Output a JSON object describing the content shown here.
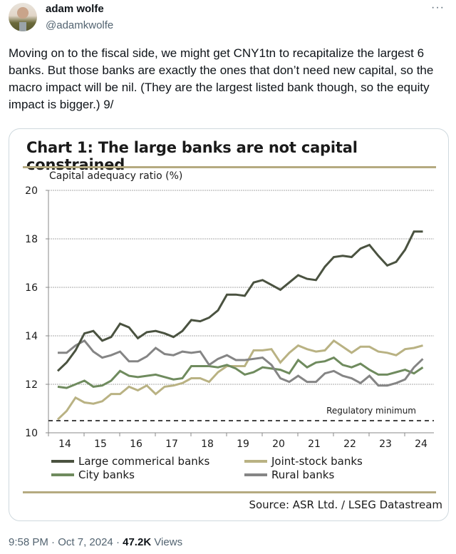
{
  "tweet": {
    "author_name": "adam wolfe",
    "author_handle": "@adamkwolfe",
    "more_icon": "more-horizontal-icon",
    "text": "Moving on to the fiscal side, we might get CNY1tn to recapitalize the largest 6 banks. But those banks are exactly the ones that don’t need new capital, so the macro impact will be nil. (They are the largest listed bank though, so the equity impact is bigger.) 9/",
    "time": "9:58 PM",
    "separator": "·",
    "date": "Oct 7, 2024",
    "views_count": "47.2K",
    "views_label": "Views"
  },
  "chart_data": {
    "type": "line",
    "title": "Chart 1: The large banks are not capital constrained",
    "ylabel": "Capital adequacy ratio (%)",
    "xlabel": "",
    "ylim": [
      10,
      20
    ],
    "yticks": [
      "10",
      "12",
      "14",
      "16",
      "18",
      "20"
    ],
    "xticks": [
      "14",
      "15",
      "16",
      "17",
      "18",
      "19",
      "20",
      "21",
      "22",
      "23",
      "24"
    ],
    "x_start": "2014 Q1",
    "x_end": "2024 Q2",
    "frequency": "quarterly",
    "grid": true,
    "legend_position": "bottom",
    "annotations": [
      {
        "text": "Regulatory minimum",
        "y": 10.5,
        "style": "dashed"
      }
    ],
    "source": "Source: ASR Ltd. / LSEG Datastream",
    "series": [
      {
        "name": "Large commerical banks",
        "color": "#4a5240",
        "values": [
          12.55,
          12.9,
          13.4,
          14.1,
          14.2,
          13.8,
          13.95,
          14.5,
          14.35,
          13.9,
          14.15,
          14.2,
          14.1,
          13.95,
          14.2,
          14.65,
          14.6,
          14.75,
          15.05,
          15.7,
          15.7,
          15.65,
          16.2,
          16.3,
          16.1,
          15.9,
          16.2,
          16.5,
          16.35,
          16.3,
          16.85,
          17.25,
          17.3,
          17.25,
          17.6,
          17.75,
          17.3,
          16.9,
          17.05,
          17.55,
          18.3,
          18.3
        ]
      },
      {
        "name": "Joint-stock banks",
        "color": "#b9b283",
        "values": [
          10.55,
          10.9,
          11.45,
          11.25,
          11.2,
          11.3,
          11.6,
          11.6,
          11.9,
          11.75,
          11.95,
          11.6,
          11.9,
          11.95,
          12.05,
          12.25,
          12.25,
          12.1,
          12.5,
          12.75,
          12.75,
          12.75,
          13.4,
          13.4,
          13.45,
          12.9,
          13.3,
          13.6,
          13.45,
          13.35,
          13.4,
          13.8,
          13.55,
          13.3,
          13.55,
          13.55,
          13.35,
          13.3,
          13.2,
          13.45,
          13.5,
          13.6
        ]
      },
      {
        "name": "City banks",
        "color": "#6f8b5e",
        "values": [
          11.9,
          11.85,
          12.0,
          12.15,
          11.9,
          11.95,
          12.15,
          12.55,
          12.35,
          12.3,
          12.35,
          12.4,
          12.3,
          12.2,
          12.25,
          12.75,
          12.75,
          12.75,
          12.7,
          12.8,
          12.65,
          12.4,
          12.5,
          12.7,
          12.65,
          12.6,
          12.45,
          13.0,
          12.7,
          12.9,
          12.95,
          13.1,
          12.8,
          12.7,
          12.85,
          12.6,
          12.4,
          12.4,
          12.5,
          12.6,
          12.45,
          12.7
        ]
      },
      {
        "name": "Rural banks",
        "color": "#858585",
        "values": [
          13.3,
          13.3,
          13.6,
          13.8,
          13.35,
          13.1,
          13.2,
          13.35,
          12.95,
          12.95,
          13.15,
          13.5,
          13.25,
          13.2,
          13.35,
          13.3,
          13.35,
          12.8,
          13.05,
          13.2,
          13.0,
          13.0,
          13.05,
          13.1,
          12.8,
          12.25,
          12.1,
          12.35,
          12.1,
          12.1,
          12.45,
          12.55,
          12.35,
          12.25,
          12.05,
          12.35,
          11.95,
          11.95,
          12.05,
          12.2,
          12.7,
          13.05
        ]
      }
    ],
    "regulatory_minimum": 10.5
  },
  "legend": [
    {
      "label": "Large commerical banks",
      "color": "#4a5240"
    },
    {
      "label": "Joint-stock banks",
      "color": "#b9b283"
    },
    {
      "label": "City banks",
      "color": "#6f8b5e"
    },
    {
      "label": "Rural banks",
      "color": "#858585"
    }
  ]
}
